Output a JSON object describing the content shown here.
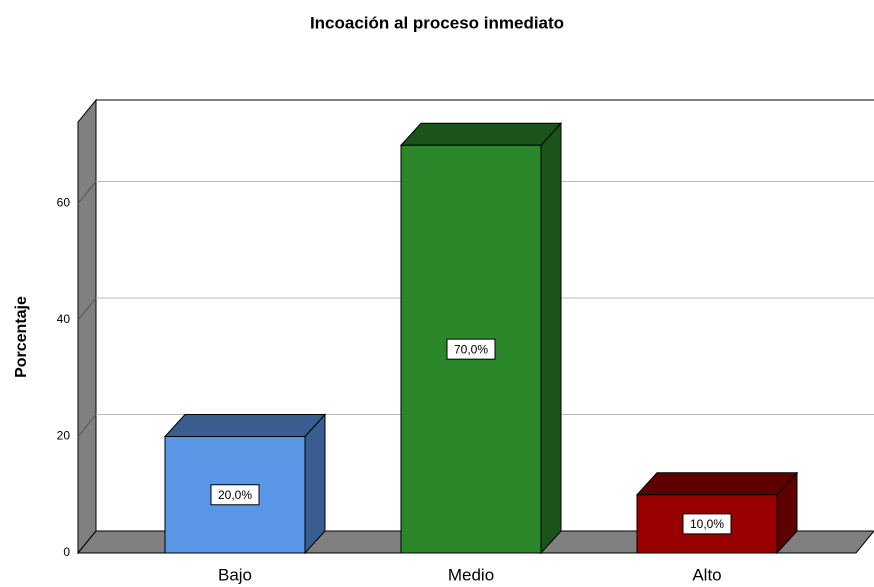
{
  "chart_data": {
    "type": "bar3d",
    "title": "Incoación al proceso inmediato",
    "y_label": "Porcentaje",
    "categories": [
      "Bajo",
      "Medio",
      "Alto"
    ],
    "values": [
      20,
      70,
      10
    ],
    "value_labels": [
      "20,0%",
      "70,0%",
      "10,0%"
    ],
    "colors": [
      "#5a96e6",
      "#2a882a",
      "#990000"
    ],
    "ylim": [
      0,
      74
    ],
    "yticks": [
      0,
      20,
      40,
      60
    ],
    "grid": true
  }
}
